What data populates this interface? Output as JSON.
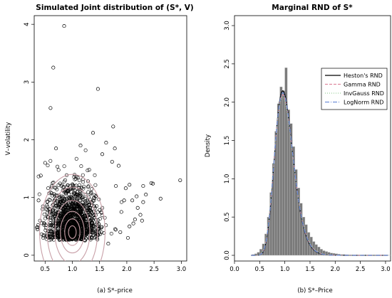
{
  "chart_data": [
    {
      "type": "scatter",
      "title": "Simulated Joint distribution of (S*, V)",
      "xlabel": "",
      "ylabel": "V–volatility",
      "caption": "(a)  S*–price",
      "xlim": [
        0.3,
        3.1
      ],
      "ylim": [
        -0.1,
        4.15
      ],
      "xticks": [
        "0.5",
        "1.0",
        "1.5",
        "2.0",
        "2.5",
        "3.0"
      ],
      "yticks": [
        "0",
        "1",
        "2",
        "3",
        "4"
      ],
      "cluster": {
        "center": [
          1.0,
          0.4
        ],
        "spread": [
          0.2,
          0.27
        ],
        "count": 1400
      },
      "outliers": [
        [
          0.85,
          3.97
        ],
        [
          0.65,
          3.25
        ],
        [
          1.47,
          2.88
        ],
        [
          0.6,
          2.55
        ],
        [
          1.75,
          2.23
        ],
        [
          1.38,
          2.12
        ],
        [
          1.62,
          1.95
        ],
        [
          1.78,
          1.85
        ],
        [
          1.85,
          1.55
        ],
        [
          2.05,
          1.22
        ],
        [
          2.1,
          0.95
        ],
        [
          2.2,
          0.82
        ],
        [
          2.35,
          1.05
        ],
        [
          2.45,
          1.25
        ],
        [
          2.48,
          1.24
        ],
        [
          2.62,
          0.98
        ],
        [
          2.98,
          1.3
        ],
        [
          2.25,
          0.7
        ],
        [
          1.95,
          0.95
        ],
        [
          2.15,
          0.62
        ],
        [
          1.55,
          1.75
        ],
        [
          0.7,
          1.85
        ],
        [
          0.5,
          1.6
        ],
        [
          2.05,
          0.5
        ],
        [
          1.9,
          0.75
        ],
        [
          2.3,
          0.92
        ],
        [
          2.18,
          1.02
        ],
        [
          1.98,
          1.16
        ],
        [
          1.73,
          1.62
        ],
        [
          0.42,
          1.38
        ],
        [
          2.12,
          0.55
        ],
        [
          1.88,
          0.4
        ],
        [
          1.8,
          1.2
        ],
        [
          2.02,
          0.3
        ],
        [
          2.3,
          1.2
        ],
        [
          1.15,
          1.9
        ],
        [
          1.66,
          0.2
        ],
        [
          2.28,
          0.6
        ],
        [
          0.38,
          0.95
        ],
        [
          0.36,
          0.45
        ]
      ],
      "contours": [
        {
          "rx": 0.07,
          "ry": 0.11
        },
        {
          "rx": 0.14,
          "ry": 0.23
        },
        {
          "rx": 0.22,
          "ry": 0.36
        },
        {
          "rx": 0.32,
          "ry": 0.55
        },
        {
          "rx": 0.46,
          "ry": 0.78
        },
        {
          "rx": 0.6,
          "ry": 1.0
        }
      ],
      "colors": {
        "points": "#000000",
        "contour": "#c9a0a8"
      }
    },
    {
      "type": "bar",
      "title": "Marginal RND of S*",
      "xlabel": "",
      "ylabel": "Density",
      "caption": "(b)  S*–Price",
      "xlim": [
        0.0,
        3.1
      ],
      "ylim": [
        0.0,
        3.0
      ],
      "xticks": [
        "0.0",
        "0.5",
        "1.0",
        "1.5",
        "2.0",
        "2.5",
        "3.0"
      ],
      "yticks": [
        "0.0",
        "0.5",
        "1.0",
        "1.5",
        "2.0",
        "2.5",
        "3.0"
      ],
      "bin_width": 0.05,
      "bins_x": [
        0.35,
        0.4,
        0.45,
        0.5,
        0.55,
        0.6,
        0.65,
        0.7,
        0.75,
        0.8,
        0.85,
        0.9,
        0.95,
        1.0,
        1.05,
        1.1,
        1.15,
        1.2,
        1.25,
        1.3,
        1.35,
        1.4,
        1.45,
        1.5,
        1.55,
        1.6,
        1.65,
        1.7,
        1.75,
        1.8,
        1.85,
        1.9,
        1.95,
        2.0,
        2.05,
        2.1,
        2.15,
        2.2,
        2.25,
        2.3,
        2.35,
        2.4,
        2.45,
        2.5,
        2.55,
        2.6,
        2.65,
        2.7,
        2.75,
        2.8,
        2.85,
        2.9,
        2.95,
        3.0,
        3.05
      ],
      "bins_density": [
        0.01,
        0.02,
        0.04,
        0.08,
        0.15,
        0.28,
        0.5,
        0.82,
        1.2,
        1.62,
        1.98,
        2.2,
        2.15,
        2.45,
        1.9,
        1.72,
        1.42,
        1.12,
        0.88,
        0.68,
        0.5,
        0.4,
        0.3,
        0.24,
        0.18,
        0.14,
        0.11,
        0.08,
        0.06,
        0.05,
        0.04,
        0.03,
        0.025,
        0.02,
        0.015,
        0.012,
        0.01,
        0.008,
        0.006,
        0.005,
        0.004,
        0.004,
        0.003,
        0.003,
        0.002,
        0.002,
        0.002,
        0.001,
        0.001,
        0.001,
        0.001,
        0.001,
        0.001,
        0.001,
        0.001
      ],
      "series": [
        {
          "name": "Heston's RND",
          "color": "#000000",
          "dash": "",
          "mu": -0.005,
          "sigma": 0.19
        },
        {
          "name": "Gamma RND",
          "color": "#e08aa0",
          "dash": "4,2",
          "mu": -0.005,
          "sigma": 0.195
        },
        {
          "name": "InvGauss RND",
          "color": "#9bd09b",
          "dash": "1,2",
          "mu": -0.006,
          "sigma": 0.198
        },
        {
          "name": "LogNorm RND",
          "color": "#6f8fd8",
          "dash": "6,2,1,2",
          "mu": -0.004,
          "sigma": 0.192
        }
      ],
      "colors": {
        "bars": "#7a7a7a"
      }
    }
  ]
}
